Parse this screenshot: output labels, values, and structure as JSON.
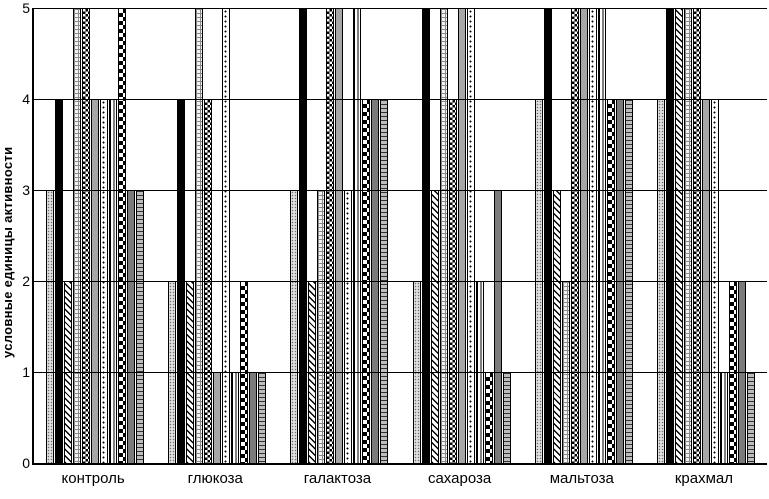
{
  "colors": {
    "background": "#ffffff",
    "bar_border": "#000000",
    "axis": "#000000",
    "gridline": "#000000"
  },
  "chart_data": {
    "type": "bar",
    "title": "",
    "xlabel": "",
    "ylabel": "условные единицы активности",
    "ylim": [
      0,
      5
    ],
    "yticks": [
      0,
      1,
      2,
      3,
      4,
      5
    ],
    "grid": "horizontal",
    "legend_position": "none",
    "categories": [
      "контроль",
      "глюкоза",
      "галактоза",
      "сахароза",
      "мальтоза",
      "крахмал"
    ],
    "series": [
      {
        "pattern": "light-stipple",
        "values": [
          3,
          2,
          3,
          2,
          4,
          4
        ]
      },
      {
        "pattern": "solid-black",
        "values": [
          4,
          4,
          5,
          5,
          5,
          5
        ]
      },
      {
        "pattern": "diagonal-hatch",
        "values": [
          2,
          2,
          2,
          3,
          3,
          5
        ]
      },
      {
        "pattern": "fine-grid",
        "values": [
          5,
          5,
          3,
          5,
          2,
          5
        ]
      },
      {
        "pattern": "dense-check",
        "values": [
          5,
          4,
          5,
          4,
          5,
          5
        ]
      },
      {
        "pattern": "solid-gray",
        "values": [
          4,
          1,
          5,
          5,
          5,
          4
        ]
      },
      {
        "pattern": "sparse-dots",
        "values": [
          4,
          5,
          3,
          5,
          5,
          4
        ]
      },
      {
        "pattern": "vertical-stripes",
        "values": [
          4,
          1,
          5,
          2,
          5,
          1
        ]
      },
      {
        "pattern": "checkerboard",
        "values": [
          5,
          2,
          4,
          1,
          4,
          2
        ]
      },
      {
        "pattern": "dark-gray",
        "values": [
          3,
          1,
          4,
          3,
          4,
          2
        ]
      },
      {
        "pattern": "horizontal-brick",
        "values": [
          3,
          1,
          4,
          1,
          4,
          1
        ]
      }
    ]
  }
}
